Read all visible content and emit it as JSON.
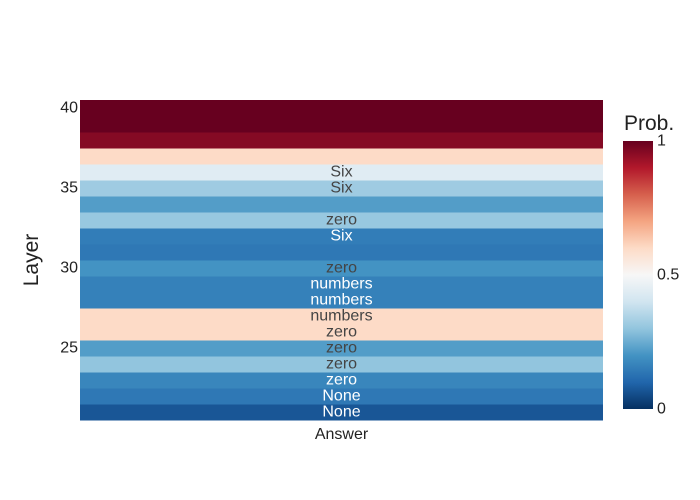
{
  "chart_data": {
    "type": "heatmap",
    "x_categories": [
      "Answer"
    ],
    "ylabel": "Layer",
    "xlabel": "",
    "y_ticks": [
      25,
      30,
      35,
      40
    ],
    "y_range": [
      20.5,
      40.5
    ],
    "colorbar": {
      "title": "Prob.",
      "ticks": [
        "0",
        "0.5",
        "1"
      ],
      "range": [
        0,
        1
      ],
      "colorscale": "RdBu_reversed",
      "stops": [
        {
          "pos": 0.0,
          "color": "#053061"
        },
        {
          "pos": 0.1,
          "color": "#2166ac"
        },
        {
          "pos": 0.2,
          "color": "#4393c3"
        },
        {
          "pos": 0.3,
          "color": "#92c5de"
        },
        {
          "pos": 0.4,
          "color": "#d1e5f0"
        },
        {
          "pos": 0.5,
          "color": "#f7f7f7"
        },
        {
          "pos": 0.6,
          "color": "#fddbc7"
        },
        {
          "pos": 0.7,
          "color": "#f4a582"
        },
        {
          "pos": 0.8,
          "color": "#d6604d"
        },
        {
          "pos": 0.9,
          "color": "#b2182b"
        },
        {
          "pos": 1.0,
          "color": "#67001f"
        }
      ]
    },
    "rows": [
      {
        "layer": 21,
        "label": "None",
        "value": 0.07
      },
      {
        "layer": 22,
        "label": "None",
        "value": 0.14
      },
      {
        "layer": 23,
        "label": "zero",
        "value": 0.17
      },
      {
        "layer": 24,
        "label": "zero",
        "value": 0.3
      },
      {
        "layer": 25,
        "label": "zero",
        "value": 0.22
      },
      {
        "layer": 26,
        "label": "zero",
        "value": 0.6
      },
      {
        "layer": 27,
        "label": "numbers",
        "value": 0.6
      },
      {
        "layer": 28,
        "label": "numbers",
        "value": 0.16
      },
      {
        "layer": 29,
        "label": "numbers",
        "value": 0.16
      },
      {
        "layer": 30,
        "label": "zero",
        "value": 0.2
      },
      {
        "layer": 31,
        "label": "",
        "value": 0.14
      },
      {
        "layer": 32,
        "label": "Six",
        "value": 0.15
      },
      {
        "layer": 33,
        "label": "zero",
        "value": 0.31
      },
      {
        "layer": 34,
        "label": "",
        "value": 0.22
      },
      {
        "layer": 35,
        "label": "Six",
        "value": 0.32
      },
      {
        "layer": 36,
        "label": "Six",
        "value": 0.44
      },
      {
        "layer": 37,
        "label": "",
        "value": 0.6
      },
      {
        "layer": 38,
        "label": "",
        "value": 0.96
      },
      {
        "layer": 39,
        "label": "",
        "value": 1.0
      },
      {
        "layer": 40,
        "label": "",
        "value": 1.0
      }
    ]
  }
}
